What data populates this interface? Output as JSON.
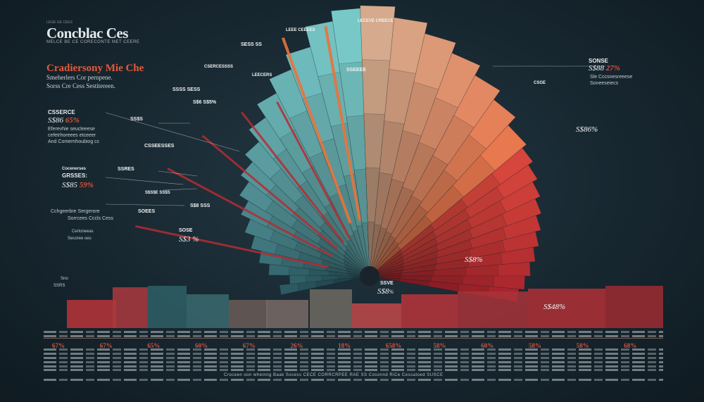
{
  "header": {
    "top_meta": "LEGE GE CEES",
    "title": "Concblac Ces",
    "subtitle": "MELCE BE CE CORECONTE MET CEERE"
  },
  "section": {
    "heading": "Cradiersony Mie Che",
    "desc_line1": "Smeherlers Cor pernpene.",
    "desc_line2": "Sorss Cre Cess Sestitereen."
  },
  "left_labels": [
    {
      "head": "CSSERCE",
      "value": "S$86 ",
      "accent": "65%",
      "line1": "Eferevhie seucleeese",
      "line2": "cefetrhoreees etceeer",
      "line3": "And Comernhoubiog cc"
    },
    {
      "head": "Cocenerses",
      "value": "",
      "accent": "",
      "line1": "",
      "line2": "",
      "line3": ""
    },
    {
      "head": "GRSSES:",
      "value": "S$85 ",
      "accent": "59%",
      "line1": "Cchgeerbre Sergerore",
      "line2": "Sorrcees Cccls Cess",
      "line3": ""
    },
    {
      "head": "Cerloneeas",
      "value": "",
      "accent": "",
      "line1": "Secoree oes",
      "line2": "",
      "line3": ""
    },
    {
      "head": "Sno",
      "value": "",
      "accent": "",
      "line1": "SSRS",
      "line2": "",
      "line3": ""
    }
  ],
  "right_label": {
    "head": "SONSE",
    "value": "S$88 ",
    "accent": "27%",
    "line1": "Sle Cccsnesreeese",
    "line2": "Soneeseiecs"
  },
  "wedge_labels": [
    {
      "text": "LEEE CEEEES"
    },
    {
      "text": "LECEVE CREECE"
    },
    {
      "text": "SESS SS"
    },
    {
      "text": "CSERCESSSS"
    },
    {
      "text": "LEECERS"
    },
    {
      "text": "SSEEEE"
    },
    {
      "text": "SSSS SESS"
    },
    {
      "text": "S$6 S$5%"
    },
    {
      "text": "SS$S"
    },
    {
      "text": "CSSEESSES"
    },
    {
      "text": "SSRES"
    },
    {
      "text": "S$S$E SS$S"
    },
    {
      "text": "SOEES"
    },
    {
      "text": "S$8 SSS"
    },
    {
      "text": "CSGE"
    },
    {
      "text": "S$86%"
    },
    {
      "text": "S$8%"
    },
    {
      "text": "S$48%"
    }
  ],
  "center_label": {
    "top": "SSVE",
    "value": "S$8",
    "accent": "%"
  },
  "wedge_center_label": {
    "head": "SOSE",
    "value": "S$3 %"
  },
  "chart_data": {
    "type": "pie",
    "title": "Concblac Ces",
    "subtitle": "MELCE BE CE CORECONTE MET CEERE",
    "variant": "half-radial fan",
    "series": [
      {
        "name": "Teal",
        "values": [
          32,
          28,
          36,
          40,
          44,
          48,
          52,
          56,
          60,
          64,
          70,
          76,
          82,
          88,
          96,
          100
        ]
      },
      {
        "name": "Orange",
        "values": [
          96,
          92,
          88,
          84,
          80,
          76,
          72
        ]
      },
      {
        "name": "Red",
        "values": [
          70,
          68,
          66,
          64,
          62,
          60,
          58,
          56,
          54,
          52
        ]
      }
    ],
    "percent_labels": [
      "67%",
      "67%",
      "65%",
      "60%",
      "67%",
      "26%",
      "18%",
      "658%",
      "58%",
      "60%",
      "58%",
      "58%",
      "68%"
    ],
    "legend": "none",
    "colors": {
      "teal": "#5fa7a8",
      "orange": "#e4865a",
      "red": "#c8353a",
      "dark_teal": "#2c5a63"
    }
  },
  "table": {
    "rows": 9,
    "footer": "Croceen oon wheinng Baak Sosess CECE CORRCRPEE RAE SS Cosonnd RiCe Cessatoed SUSCE"
  }
}
